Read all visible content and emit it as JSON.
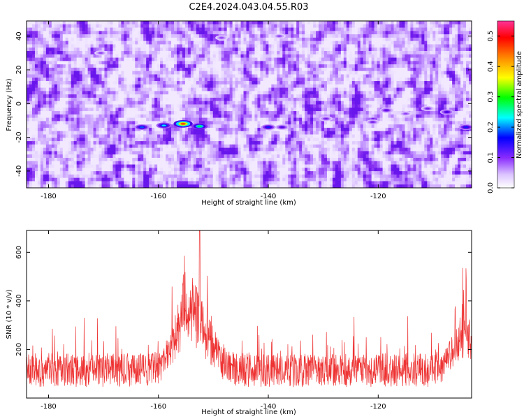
{
  "title": "C2E4.2024.043.04.55.R03",
  "chart_data": [
    {
      "type": "heatmap",
      "xlabel": "Height of straight line (km)",
      "ylabel": "Frequency (Hz)",
      "xlim": [
        -184,
        -103
      ],
      "ylim": [
        -50,
        49
      ],
      "x_ticks": [
        -180,
        -160,
        -140,
        -120
      ],
      "y_ticks": [
        -40,
        -20,
        0,
        20,
        40
      ],
      "x_tick_labels": [
        "-180",
        "-160",
        "-140",
        "-120"
      ],
      "y_tick_labels": [
        "-40",
        "-20",
        "0",
        "20",
        "40"
      ],
      "colorbar": {
        "label": "Normalized spectral amplitude",
        "range": [
          0,
          0.55
        ],
        "ticks": [
          0.0,
          0.1,
          0.2,
          0.3,
          0.4,
          0.5
        ],
        "tick_labels": [
          "0.0",
          "0.1",
          "0.2",
          "0.3",
          "0.4",
          "0.5"
        ],
        "colors": [
          "#ffffff",
          "#cc99ff",
          "#7a00ff",
          "#0000ff",
          "#00ffff",
          "#00ff00",
          "#ffff00",
          "#ff8800",
          "#ff0000",
          "#ff3399"
        ]
      },
      "hotspots": [
        {
          "x": -163,
          "y": -14,
          "value": 0.22
        },
        {
          "x": -159,
          "y": -13,
          "value": 0.25
        },
        {
          "x": -155.5,
          "y": -12,
          "value": 0.45
        },
        {
          "x": -152.5,
          "y": -13.5,
          "value": 0.3
        },
        {
          "x": -140,
          "y": -14,
          "value": 0.2
        },
        {
          "x": -137.5,
          "y": -14,
          "value": 0.15
        },
        {
          "x": -129.5,
          "y": -9,
          "value": 0.12
        },
        {
          "x": -121,
          "y": -11,
          "value": 0.12
        },
        {
          "x": -118.5,
          "y": -4,
          "value": 0.14
        },
        {
          "x": -115,
          "y": -6,
          "value": 0.1
        },
        {
          "x": -111,
          "y": -3,
          "value": 0.12
        },
        {
          "x": -107.5,
          "y": -5,
          "value": 0.16
        },
        {
          "x": -104,
          "y": -14,
          "value": 0.2
        },
        {
          "x": -170.5,
          "y": 30,
          "value": 0.1
        },
        {
          "x": -148.5,
          "y": 39,
          "value": 0.1
        },
        {
          "x": -138,
          "y": 40,
          "value": 0.1
        }
      ],
      "background_level": [
        0.02,
        0.09
      ]
    },
    {
      "type": "line",
      "xlabel": "Height of straight line (km)",
      "ylabel": "SNR (10 * v/v)",
      "xlim": [
        -184,
        -103
      ],
      "ylim": [
        0,
        690
      ],
      "x_ticks": [
        -180,
        -160,
        -140,
        -120
      ],
      "y_ticks": [
        200,
        400,
        600
      ],
      "x_tick_labels": [
        "-180",
        "-160",
        "-140",
        "-120"
      ],
      "y_tick_labels": [
        "200",
        "400",
        "600"
      ],
      "series": [
        {
          "color": "#ee3333",
          "baseline": 115,
          "noise_amplitude": 70,
          "points": 1500,
          "peaks": [
            {
              "x": -152.5,
              "y": 690,
              "width": 2.2,
              "height": 230
            },
            {
              "x": -155.5,
              "y": 520,
              "width": 2.0,
              "height": 150
            },
            {
              "x": -104,
              "y": 510,
              "width": 0.9,
              "height": 160
            },
            {
              "x": -106,
              "y": 380,
              "width": 1.5,
              "height": 80
            }
          ]
        }
      ]
    }
  ]
}
